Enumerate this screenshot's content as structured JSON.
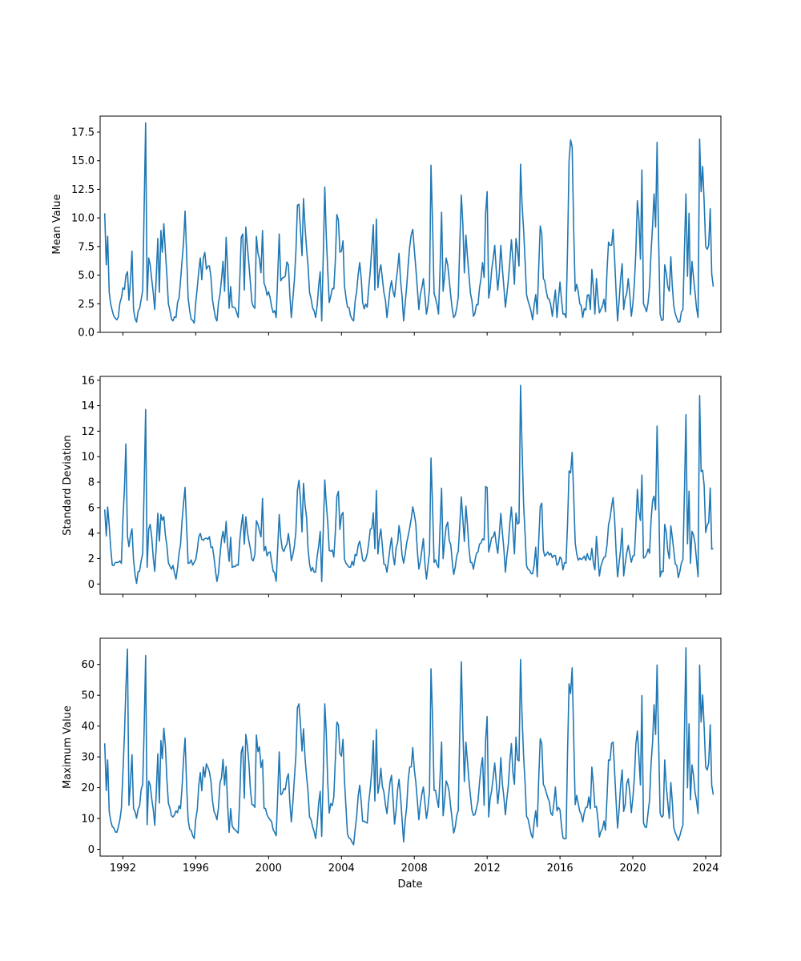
{
  "chart_data": [
    {
      "type": "line",
      "title": "",
      "xlabel": "",
      "ylabel": "Mean Value",
      "xlim": [
        "1990-10-01",
        "2024-11-01"
      ],
      "ylim": [
        0,
        18.9
      ],
      "yticks": [
        0.0,
        2.5,
        5.0,
        7.5,
        10.0,
        12.5,
        15.0,
        17.5
      ],
      "ytick_labels": [
        "0.0",
        "2.5",
        "5.0",
        "7.5",
        "10.0",
        "12.5",
        "15.0",
        "17.5"
      ],
      "color": "#1f77b4",
      "series": [
        {
          "x": [],
          "values": []
        }
      ]
    },
    {
      "type": "line",
      "title": "",
      "xlabel": "",
      "ylabel": "Standard Deviation",
      "xlim": [
        "1990-10-01",
        "2024-11-01"
      ],
      "ylim": [
        -0.8,
        16.3
      ],
      "yticks": [
        0,
        2,
        4,
        6,
        8,
        10,
        12,
        14,
        16
      ],
      "ytick_labels": [
        "0",
        "2",
        "4",
        "6",
        "8",
        "10",
        "12",
        "14",
        "16"
      ],
      "color": "#1f77b4",
      "series": [
        {
          "x": [],
          "values": []
        }
      ]
    },
    {
      "type": "line",
      "title": "",
      "xlabel": "Date",
      "ylabel": "Maximum Value",
      "xlim": [
        "1990-10-01",
        "2024-11-01"
      ],
      "ylim": [
        -2.2,
        68.5
      ],
      "yticks": [
        0,
        10,
        20,
        30,
        40,
        50,
        60
      ],
      "ytick_labels": [
        "0",
        "10",
        "20",
        "30",
        "40",
        "50",
        "60"
      ],
      "xticks": [
        "1992-01-01",
        "1996-01-01",
        "2000-01-01",
        "2004-01-01",
        "2008-01-01",
        "2012-01-01",
        "2016-01-01",
        "2020-01-01",
        "2024-01-01"
      ],
      "xtick_labels": [
        "1992",
        "1996",
        "2000",
        "2004",
        "2008",
        "2012",
        "2016",
        "2020",
        "2024"
      ],
      "color": "#1f77b4",
      "series": [
        {
          "x": [],
          "values": []
        }
      ]
    }
  ]
}
